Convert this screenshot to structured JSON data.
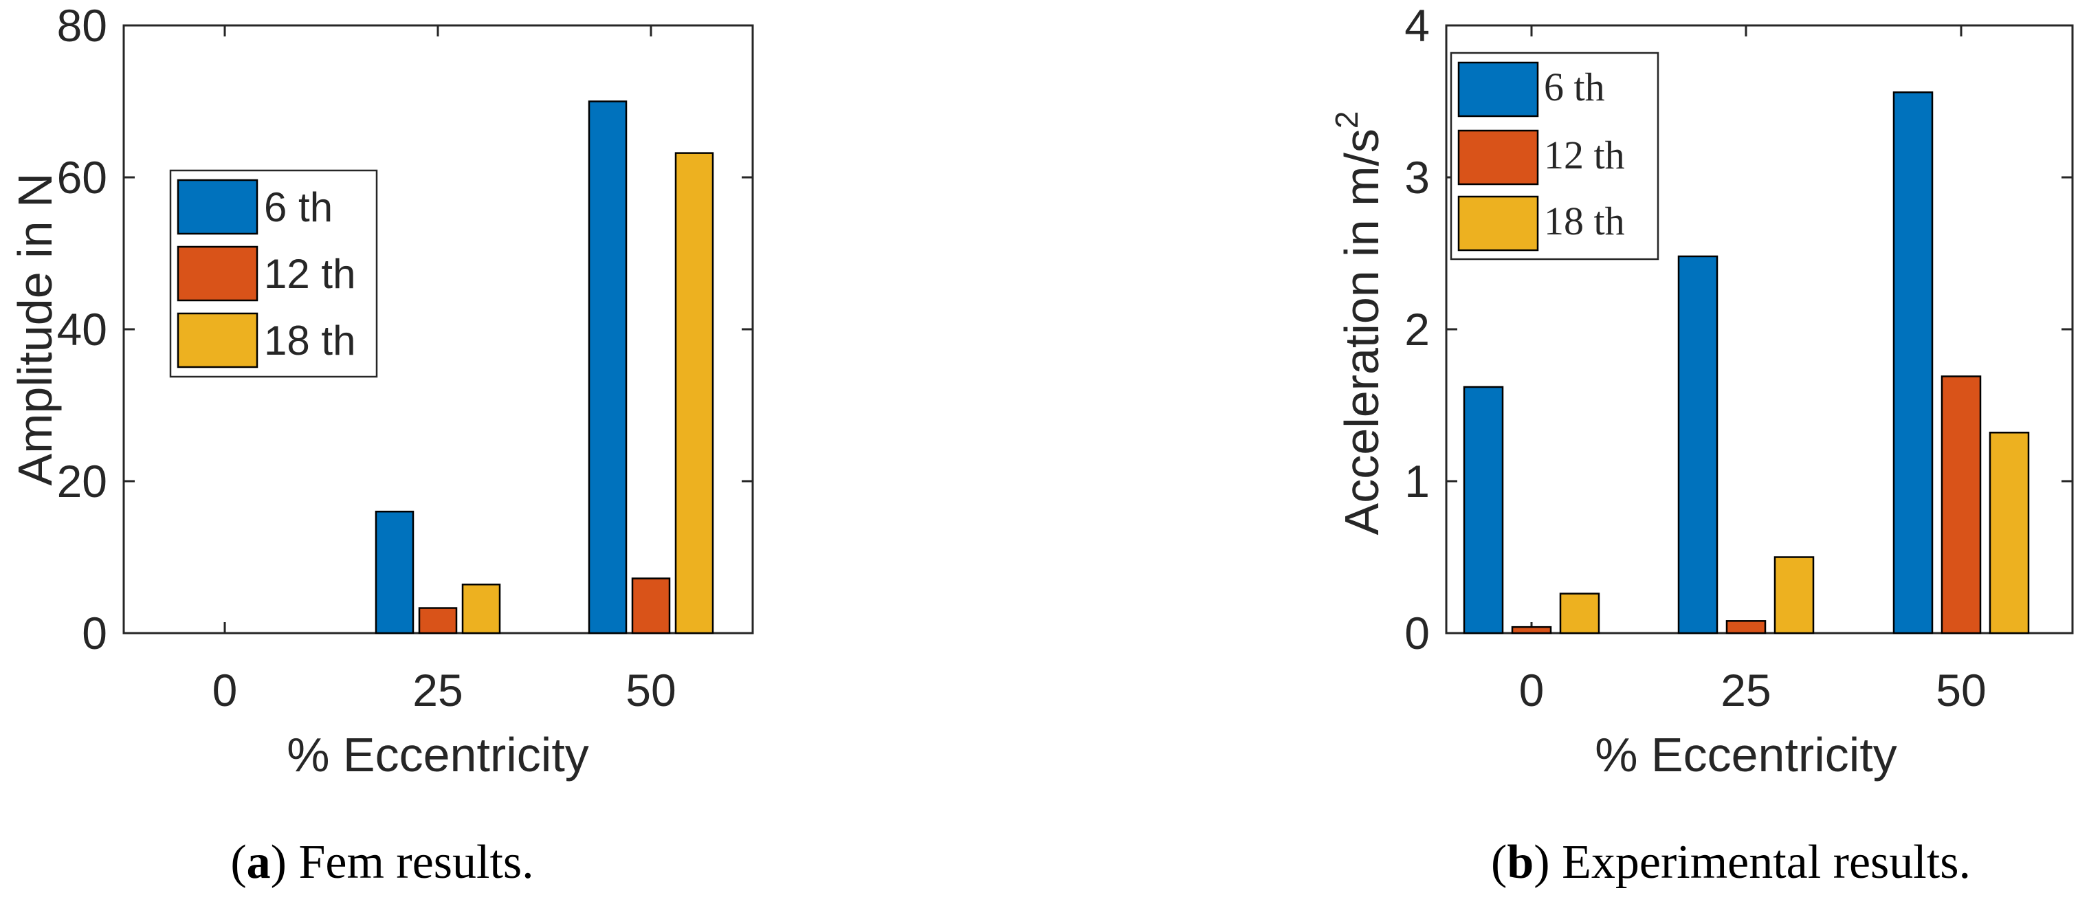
{
  "colors": {
    "series": [
      "#0072BD",
      "#D95319",
      "#EDB120"
    ],
    "axis": "#262626",
    "bar_edge": "#000000"
  },
  "chart_data": [
    {
      "id": "a",
      "type": "bar",
      "categories": [
        "0",
        "25",
        "50"
      ],
      "series": [
        {
          "name": "6 th",
          "values": [
            0,
            16,
            70
          ]
        },
        {
          "name": "12 th",
          "values": [
            0,
            3.3,
            7.2
          ]
        },
        {
          "name": "18 th",
          "values": [
            0,
            6.4,
            63.2
          ]
        }
      ],
      "title": "",
      "xlabel": "% Eccentricity",
      "ylabel": "Amplitude in N",
      "ylim": [
        0,
        80
      ],
      "yticks": [
        "0",
        "20",
        "40",
        "60",
        "80"
      ],
      "legend": "left-middle",
      "caption_letter": "a",
      "caption_text": " Fem results."
    },
    {
      "id": "b",
      "type": "bar",
      "categories": [
        "0",
        "25",
        "50"
      ],
      "series": [
        {
          "name": "6 th",
          "values": [
            1.62,
            2.48,
            3.56
          ]
        },
        {
          "name": "12 th",
          "values": [
            0.04,
            0.08,
            1.69
          ]
        },
        {
          "name": "18 th",
          "values": [
            0.26,
            0.5,
            1.32
          ]
        }
      ],
      "title": "",
      "xlabel": "% Eccentricity",
      "ylabel_main": "Acceleration in m/s",
      "ylabel_sup": "2",
      "ylim": [
        0,
        4
      ],
      "yticks": [
        "0",
        "1",
        "2",
        "3",
        "4"
      ],
      "legend": "top-left",
      "caption_letter": "b",
      "caption_text": " Experimental results."
    }
  ]
}
